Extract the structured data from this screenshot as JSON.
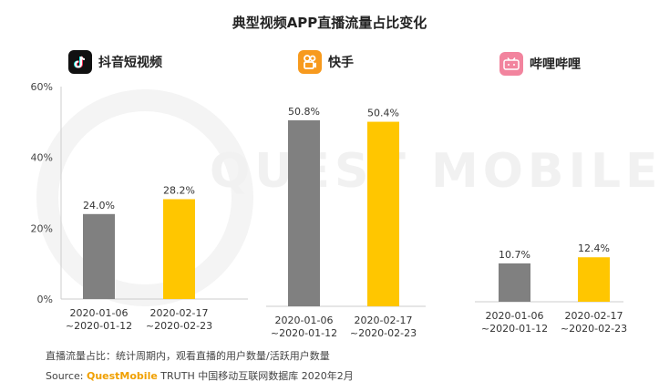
{
  "title": "典型视频APP直播流量占比变化",
  "watermark": "QUEST MOBILE",
  "apps": [
    {
      "name": "抖音短视频",
      "logo_icon": "douyin-icon",
      "logo_color": "#111111"
    },
    {
      "name": "快手",
      "logo_icon": "kuaishou-icon",
      "logo_color": "#f79a1e"
    },
    {
      "name": "哔哩哔哩",
      "logo_icon": "bilibili-icon",
      "logo_color": "#f2849e"
    }
  ],
  "colors": {
    "period1": "#808080",
    "period2": "#ffc600"
  },
  "chart_data": {
    "type": "bar",
    "ylim": [
      0,
      60
    ],
    "yticks": [
      "0%",
      "20%",
      "40%",
      "60%"
    ],
    "categories": [
      "2020-01-06\n~2020-01-12",
      "2020-02-17\n~2020-02-23"
    ],
    "groups": [
      {
        "app": "抖音短视频",
        "values": [
          24.0,
          28.2
        ],
        "labels": [
          "24.0%",
          "28.2%"
        ]
      },
      {
        "app": "快手",
        "values": [
          50.8,
          50.4
        ],
        "labels": [
          "50.8%",
          "50.4%"
        ]
      },
      {
        "app": "哔哩哔哩",
        "values": [
          10.7,
          12.4
        ],
        "labels": [
          "10.7%",
          "12.4%"
        ]
      }
    ]
  },
  "footnote": "直播流量占比：统计周期内，观看直播的用户数量/活跃用户数量",
  "source": {
    "prefix": "Source: ",
    "brand": "QuestMobile",
    "suffix": " TRUTH 中国移动互联网数据库 2020年2月"
  }
}
